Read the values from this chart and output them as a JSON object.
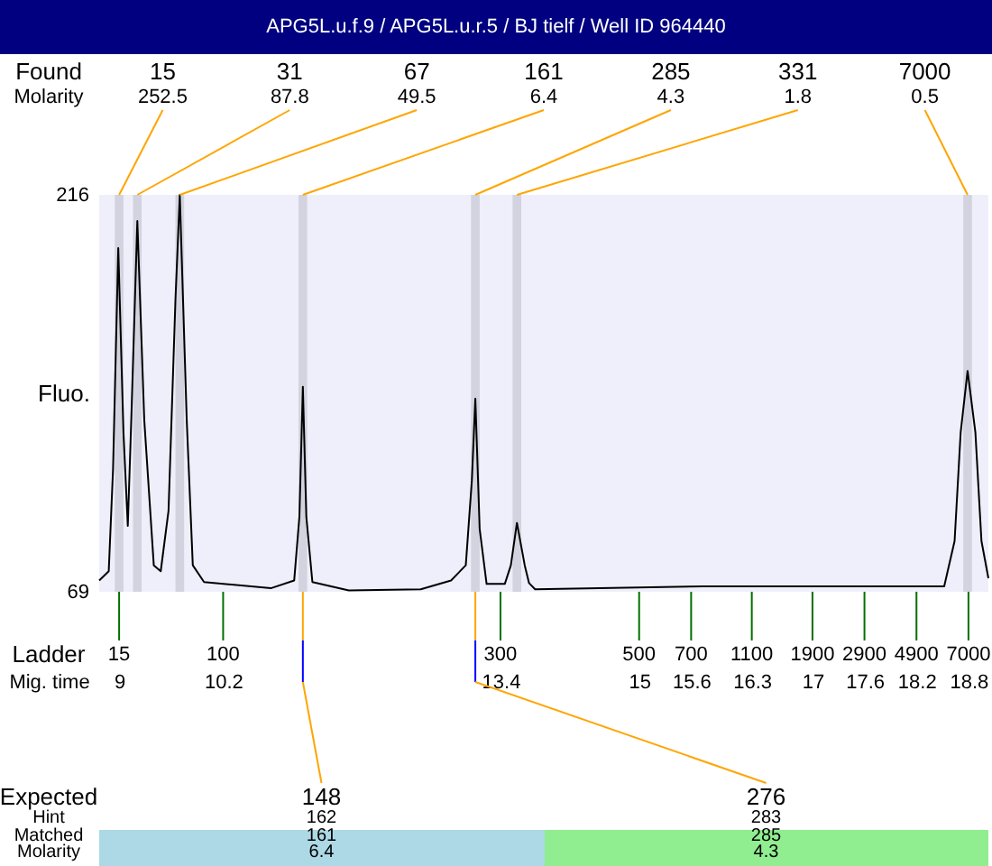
{
  "chart_data": {
    "type": "line",
    "title": "APG5L.u.f.9 / APG5L.u.r.5 / BJ tielf / Well ID 964440",
    "xlabel": "Mig. time",
    "ylabel": "Fluo.",
    "x": [
      8.77,
      8.88,
      8.93,
      8.99,
      9.05,
      9.1,
      9.14,
      9.21,
      9.29,
      9.4,
      9.48,
      9.57,
      9.65,
      9.7,
      9.78,
      9.85,
      9.98,
      10.75,
      11.02,
      11.08,
      11.12,
      11.16,
      11.23,
      11.65,
      12.48,
      12.83,
      13.0,
      13.07,
      13.11,
      13.16,
      13.24,
      13.45,
      13.52,
      13.59,
      13.68,
      13.73,
      13.8,
      15.74,
      18.52,
      18.64,
      18.71,
      18.79,
      18.88,
      18.95,
      19.03
    ],
    "series": [
      {
        "color": "#000000",
        "values": [
          73.2,
          76.6,
          114.6,
          196.3,
          128,
          93.4,
          132.6,
          206.3,
          132.6,
          78.8,
          76.6,
          99,
          177.3,
          216,
          132.6,
          78.8,
          72.6,
          70.3,
          73.2,
          96.8,
          144.9,
          96.8,
          72.6,
          69.5,
          69.9,
          73.2,
          78.8,
          110.3,
          140.5,
          92.3,
          71.9,
          71.9,
          78.8,
          94.5,
          78.8,
          72.2,
          69.9,
          71,
          71,
          87.8,
          128,
          150.8,
          128,
          87.8,
          74
        ]
      }
    ],
    "xlim": [
      8.77,
      19.03
    ],
    "xticks": [
      9,
      10.2,
      13.4,
      15,
      15.6,
      16.3,
      17,
      17.6,
      18.2,
      18.8
    ],
    "ylim": [
      69,
      216
    ],
    "yticks": [
      69,
      216
    ],
    "bands": [
      {
        "axis": "x",
        "from": 8.95,
        "to": 9.05,
        "label": "15",
        "color": "#d3d3e0"
      },
      {
        "axis": "x",
        "from": 9.16,
        "to": 9.26,
        "label": "31",
        "color": "#d3d3e0"
      },
      {
        "axis": "x",
        "from": 9.65,
        "to": 9.75,
        "label": "67",
        "color": "#d3d3e0"
      },
      {
        "axis": "x",
        "from": 11.07,
        "to": 11.17,
        "label": "161",
        "color": "#d3d3e0"
      },
      {
        "axis": "x",
        "from": 13.06,
        "to": 13.16,
        "label": "285",
        "color": "#d3d3e0"
      },
      {
        "axis": "x",
        "from": 13.54,
        "to": 13.64,
        "label": "331",
        "color": "#d3d3e0"
      },
      {
        "axis": "x",
        "from": 18.74,
        "to": 18.84,
        "label": "7000",
        "color": "#d3d3e0"
      }
    ],
    "annotations": [
      "Found",
      "Molarity",
      "Ladder",
      "Expected",
      "Hint",
      "Matched",
      "Molarity",
      "148",
      "162",
      "161",
      "6.4",
      "276",
      "283",
      "285",
      "4.3",
      {
        "text": "252.5",
        "x": 9.0,
        "y": 216
      },
      {
        "text": "87.8",
        "x": 9.21,
        "y": 216
      },
      {
        "text": "49.5",
        "x": 9.7,
        "y": 216
      },
      {
        "text": "6.4",
        "x": 11.12,
        "y": 216
      },
      {
        "text": "4.3",
        "x": 13.11,
        "y": 216
      },
      {
        "text": "1.8",
        "x": 13.59,
        "y": 216
      },
      {
        "text": "0.5",
        "x": 18.79,
        "y": 216
      },
      {
        "text": "15",
        "x": 9,
        "y": 69
      },
      {
        "text": "100",
        "x": 10.2,
        "y": 69
      },
      {
        "text": "300",
        "x": 13.4,
        "y": 69
      },
      {
        "text": "500",
        "x": 15,
        "y": 69
      },
      {
        "text": "700",
        "x": 15.6,
        "y": 69
      },
      {
        "text": "1100",
        "x": 16.3,
        "y": 69
      },
      {
        "text": "1900",
        "x": 17,
        "y": 69
      },
      {
        "text": "2900",
        "x": 17.6,
        "y": 69
      },
      {
        "text": "4900",
        "x": 18.2,
        "y": 69
      },
      {
        "text": "7000",
        "x": 18.8,
        "y": 69
      }
    ]
  }
}
